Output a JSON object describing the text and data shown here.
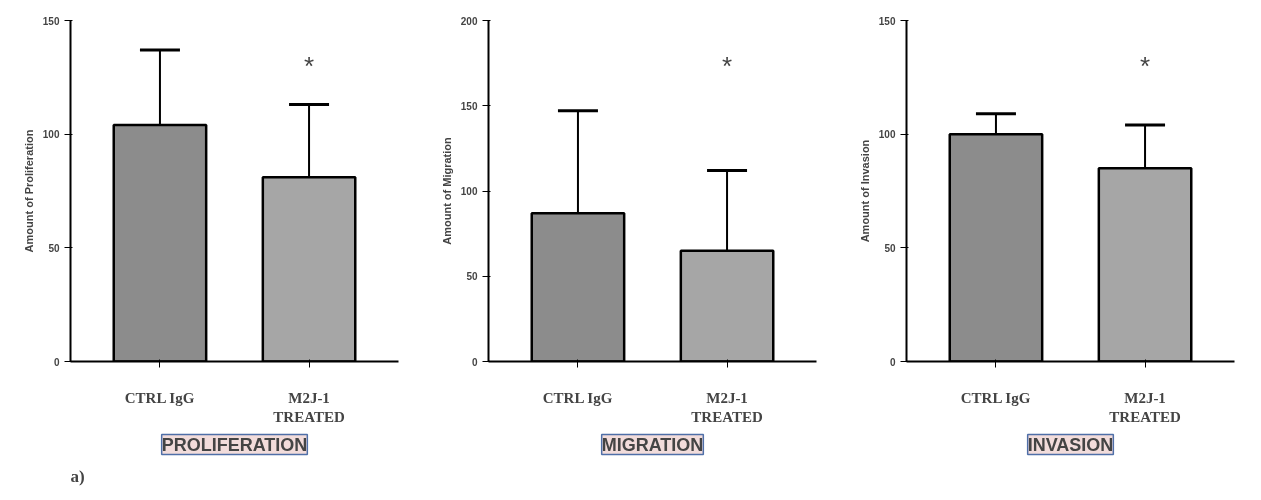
{
  "chart_data": [
    {
      "type": "bar",
      "title": "PROLIFERATION",
      "ylabel": "Amount of Proliferation",
      "categories": [
        "CTRL IgG",
        "M2J-1\nTREATED"
      ],
      "values": [
        104,
        81
      ],
      "colors": [
        "#8c8c8c",
        "#a6a6a6"
      ],
      "errors": [
        [
          104,
          137
        ],
        [
          81,
          113
        ]
      ],
      "ylim": [
        0,
        150
      ],
      "yticks": [
        0,
        50,
        100,
        150
      ],
      "grid": false,
      "annotations": [
        "*",
        "a)"
      ]
    },
    {
      "type": "bar",
      "title": "MIGRATION",
      "ylabel": "Amount of Migration",
      "categories": [
        "CTRL IgG",
        "M2J-1\nTREATED"
      ],
      "values": [
        87,
        65
      ],
      "colors": [
        "#8c8c8c",
        "#a6a6a6"
      ],
      "errors": [
        [
          87,
          147
        ],
        [
          65,
          112
        ]
      ],
      "ylim": [
        0,
        200
      ],
      "yticks": [
        0,
        50,
        100,
        150,
        200
      ],
      "grid": false,
      "annotations": [
        "*"
      ]
    },
    {
      "type": "bar",
      "title": "INVASION",
      "ylabel": "Amount of Invasion",
      "categories": [
        "CTRL IgG",
        "M2J-1\nTREATED"
      ],
      "values": [
        100,
        85
      ],
      "colors": [
        "#8c8c8c",
        "#a6a6a6"
      ],
      "errors": [
        [
          100,
          109
        ],
        [
          85,
          104
        ]
      ],
      "ylim": [
        0,
        150
      ],
      "yticks": [
        0,
        50,
        100,
        150
      ],
      "grid": false,
      "annotations": [
        "*"
      ]
    }
  ]
}
